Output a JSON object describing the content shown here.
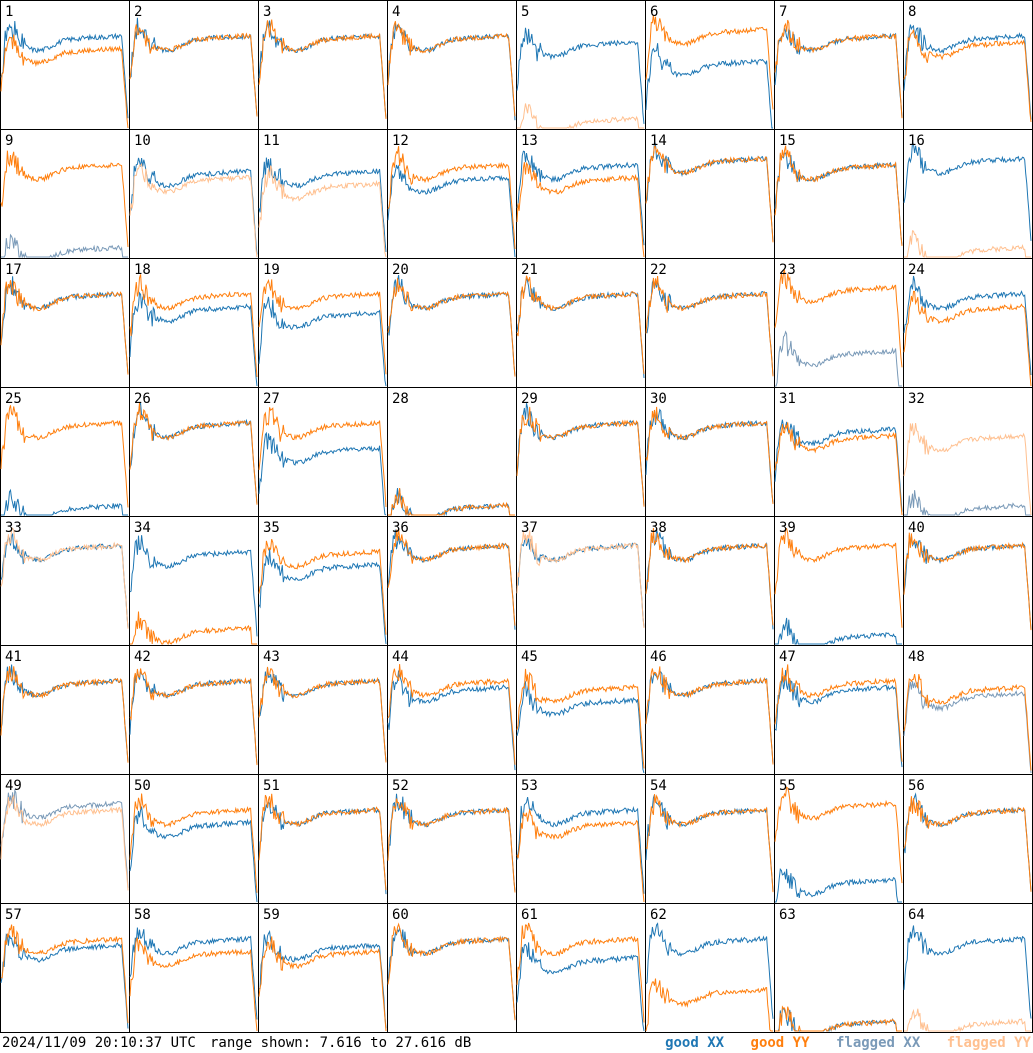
{
  "footer": {
    "timestamp": "2024/11/09 20:10:37 UTC",
    "range_text": "range shown: 7.616 to 27.616 dB"
  },
  "colors": {
    "good_xx": "#1f77b4",
    "good_yy": "#ff7f0e",
    "flagged_xx": "#7a9ab8",
    "flagged_yy": "#ffc090",
    "border": "#000000"
  },
  "chart_data": {
    "type": "line",
    "ylim_db": [
      7.616,
      27.616
    ],
    "grid": "8x8 small multiples",
    "legend": [
      {
        "label": "good XX",
        "key": "good_xx"
      },
      {
        "label": "good YY",
        "key": "good_yy"
      },
      {
        "label": "flagged XX",
        "key": "flagged_xx"
      },
      {
        "label": "flagged YY",
        "key": "flagged_yy"
      }
    ],
    "panels": [
      {
        "id": "1",
        "xx": "good",
        "yy": "good",
        "xx_level": 21,
        "yy_level": 19
      },
      {
        "id": "2",
        "xx": "good",
        "yy": "good",
        "xx_level": 21,
        "yy_level": 21
      },
      {
        "id": "3",
        "xx": "good",
        "yy": "good",
        "xx_level": 21,
        "yy_level": 21
      },
      {
        "id": "4",
        "xx": "good",
        "yy": "good",
        "xx_level": 21,
        "yy_level": 21
      },
      {
        "id": "5",
        "xx": "good",
        "yy": "flagged",
        "xx_level": 20,
        "yy_level": 8
      },
      {
        "id": "6",
        "xx": "good",
        "yy": "good",
        "xx_level": 17,
        "yy_level": 22
      },
      {
        "id": "7",
        "xx": "good",
        "yy": "good",
        "xx_level": 21,
        "yy_level": 21
      },
      {
        "id": "8",
        "xx": "good",
        "yy": "good",
        "xx_level": 21,
        "yy_level": 20
      },
      {
        "id": "9",
        "xx": "flagged",
        "yy": "good",
        "xx_level": 8,
        "yy_level": 21
      },
      {
        "id": "10",
        "xx": "good",
        "yy": "flagged",
        "xx_level": 20,
        "yy_level": 19
      },
      {
        "id": "11",
        "xx": "good",
        "yy": "flagged",
        "xx_level": 20,
        "yy_level": 18
      },
      {
        "id": "12",
        "xx": "good",
        "yy": "good",
        "xx_level": 19,
        "yy_level": 21
      },
      {
        "id": "13",
        "xx": "good",
        "yy": "good",
        "xx_level": 21,
        "yy_level": 19
      },
      {
        "id": "14",
        "xx": "good",
        "yy": "good",
        "xx_level": 22,
        "yy_level": 22
      },
      {
        "id": "15",
        "xx": "good",
        "yy": "good",
        "xx_level": 21,
        "yy_level": 21
      },
      {
        "id": "16",
        "xx": "good",
        "yy": "flagged",
        "xx_level": 22,
        "yy_level": 8
      },
      {
        "id": "17",
        "xx": "good",
        "yy": "good",
        "xx_level": 21,
        "yy_level": 21
      },
      {
        "id": "18",
        "xx": "good",
        "yy": "good",
        "xx_level": 19,
        "yy_level": 21
      },
      {
        "id": "19",
        "xx": "good",
        "yy": "good",
        "xx_level": 18,
        "yy_level": 21
      },
      {
        "id": "20",
        "xx": "good",
        "yy": "good",
        "xx_level": 21,
        "yy_level": 21
      },
      {
        "id": "21",
        "xx": "good",
        "yy": "good",
        "xx_level": 21,
        "yy_level": 21
      },
      {
        "id": "22",
        "xx": "good",
        "yy": "good",
        "xx_level": 21,
        "yy_level": 21
      },
      {
        "id": "23",
        "xx": "flagged",
        "yy": "good",
        "xx_level": 12,
        "yy_level": 22
      },
      {
        "id": "24",
        "xx": "good",
        "yy": "good",
        "xx_level": 21,
        "yy_level": 19
      },
      {
        "id": "25",
        "xx": "good",
        "yy": "good",
        "xx_level": 8,
        "yy_level": 21
      },
      {
        "id": "26",
        "xx": "good",
        "yy": "good",
        "xx_level": 21,
        "yy_level": 21
      },
      {
        "id": "27",
        "xx": "good",
        "yy": "good",
        "xx_level": 17,
        "yy_level": 21
      },
      {
        "id": "28",
        "xx": "good",
        "yy": "good",
        "xx_level": 8,
        "yy_level": 8
      },
      {
        "id": "29",
        "xx": "good",
        "yy": "good",
        "xx_level": 21,
        "yy_level": 21
      },
      {
        "id": "30",
        "xx": "good",
        "yy": "good",
        "xx_level": 21,
        "yy_level": 21
      },
      {
        "id": "31",
        "xx": "good",
        "yy": "good",
        "xx_level": 20,
        "yy_level": 19
      },
      {
        "id": "32",
        "xx": "flagged",
        "yy": "flagged",
        "xx_level": 8,
        "yy_level": 19
      },
      {
        "id": "33",
        "xx": "good",
        "yy": "flagged",
        "xx_level": 22,
        "yy_level": 22
      },
      {
        "id": "34",
        "xx": "good",
        "yy": "good",
        "xx_level": 21,
        "yy_level": 9
      },
      {
        "id": "35",
        "xx": "good",
        "yy": "good",
        "xx_level": 19,
        "yy_level": 21
      },
      {
        "id": "36",
        "xx": "good",
        "yy": "good",
        "xx_level": 22,
        "yy_level": 22
      },
      {
        "id": "37",
        "xx": "good",
        "yy": "flagged",
        "xx_level": 22,
        "yy_level": 22
      },
      {
        "id": "38",
        "xx": "good",
        "yy": "good",
        "xx_level": 22,
        "yy_level": 22
      },
      {
        "id": "39",
        "xx": "good",
        "yy": "good",
        "xx_level": 8,
        "yy_level": 22
      },
      {
        "id": "40",
        "xx": "good",
        "yy": "good",
        "xx_level": 22,
        "yy_level": 22
      },
      {
        "id": "41",
        "xx": "good",
        "yy": "good",
        "xx_level": 21,
        "yy_level": 21
      },
      {
        "id": "42",
        "xx": "good",
        "yy": "good",
        "xx_level": 21,
        "yy_level": 21
      },
      {
        "id": "43",
        "xx": "good",
        "yy": "good",
        "xx_level": 21,
        "yy_level": 21
      },
      {
        "id": "44",
        "xx": "good",
        "yy": "good",
        "xx_level": 20,
        "yy_level": 21
      },
      {
        "id": "45",
        "xx": "good",
        "yy": "good",
        "xx_level": 18,
        "yy_level": 20
      },
      {
        "id": "46",
        "xx": "good",
        "yy": "good",
        "xx_level": 21,
        "yy_level": 21
      },
      {
        "id": "47",
        "xx": "good",
        "yy": "good",
        "xx_level": 20,
        "yy_level": 21
      },
      {
        "id": "48",
        "xx": "flagged",
        "yy": "good",
        "xx_level": 19,
        "yy_level": 20
      },
      {
        "id": "49",
        "xx": "flagged",
        "yy": "flagged",
        "xx_level": 22,
        "yy_level": 21
      },
      {
        "id": "50",
        "xx": "good",
        "yy": "good",
        "xx_level": 19,
        "yy_level": 21
      },
      {
        "id": "51",
        "xx": "good",
        "yy": "good",
        "xx_level": 21,
        "yy_level": 21
      },
      {
        "id": "52",
        "xx": "good",
        "yy": "good",
        "xx_level": 21,
        "yy_level": 21
      },
      {
        "id": "53",
        "xx": "good",
        "yy": "good",
        "xx_level": 21,
        "yy_level": 19
      },
      {
        "id": "54",
        "xx": "good",
        "yy": "good",
        "xx_level": 21,
        "yy_level": 21
      },
      {
        "id": "55",
        "xx": "good",
        "yy": "good",
        "xx_level": 10,
        "yy_level": 22
      },
      {
        "id": "56",
        "xx": "good",
        "yy": "good",
        "xx_level": 21,
        "yy_level": 21
      },
      {
        "id": "57",
        "xx": "good",
        "yy": "good",
        "xx_level": 20,
        "yy_level": 21
      },
      {
        "id": "58",
        "xx": "good",
        "yy": "good",
        "xx_level": 21,
        "yy_level": 19
      },
      {
        "id": "59",
        "xx": "good",
        "yy": "good",
        "xx_level": 20,
        "yy_level": 19
      },
      {
        "id": "60",
        "xx": "good",
        "yy": "good",
        "xx_level": 21,
        "yy_level": 21
      },
      {
        "id": "61",
        "xx": "good",
        "yy": "good",
        "xx_level": 18,
        "yy_level": 21
      },
      {
        "id": "62",
        "xx": "good",
        "yy": "good",
        "xx_level": 21,
        "yy_level": 13
      },
      {
        "id": "63",
        "xx": "good",
        "yy": "good",
        "xx_level": 8,
        "yy_level": 8
      },
      {
        "id": "64",
        "xx": "good",
        "yy": "flagged",
        "xx_level": 21,
        "yy_level": 8
      }
    ]
  }
}
